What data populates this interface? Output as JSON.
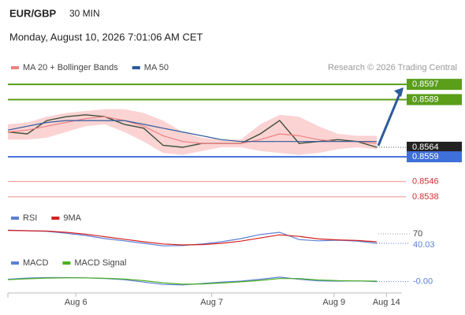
{
  "header": {
    "symbol": "EUR/GBP",
    "interval": "30 MIN",
    "datetime": "Monday, August 10, 2026 7:01:06 AM CET"
  },
  "chart_data": [
    {
      "type": "line",
      "source": "Research © 2026 Trading Central",
      "x": [
        0,
        1,
        2,
        3,
        4,
        5,
        6,
        7,
        8,
        9,
        10,
        11,
        12,
        13,
        14,
        15,
        16,
        17,
        18,
        19
      ],
      "xlim": [
        0,
        20.3
      ],
      "ylim": [
        0.8533,
        0.8602
      ],
      "values": [
        0.8572,
        0.8571,
        0.8578,
        0.858,
        0.8581,
        0.858,
        0.8576,
        0.8574,
        0.8565,
        0.8564,
        0.8566,
        0.8566,
        0.8566,
        0.8571,
        0.8578,
        0.8566,
        0.8567,
        0.8568,
        0.8567,
        0.8564
      ],
      "color": "#3d4f3a",
      "series": [
        {
          "name": "MA 20 + Bollinger Bands",
          "color": "#f08080",
          "band_color": "#fbd3d3",
          "values": [
            0.8572,
            0.8573,
            0.8575,
            0.8577,
            0.8579,
            0.858,
            0.8578,
            0.8575,
            0.857,
            0.8567,
            0.8566,
            0.8566,
            0.8566,
            0.8568,
            0.8571,
            0.857,
            0.8568,
            0.8567,
            0.8567,
            0.8566
          ],
          "upper": [
            0.8576,
            0.8577,
            0.858,
            0.8582,
            0.8583,
            0.8584,
            0.8584,
            0.8582,
            0.8578,
            0.8572,
            0.8569,
            0.8568,
            0.8568,
            0.8576,
            0.8581,
            0.858,
            0.8575,
            0.8571,
            0.857,
            0.857
          ],
          "lower": [
            0.8568,
            0.8568,
            0.8569,
            0.8572,
            0.8575,
            0.8576,
            0.8572,
            0.8567,
            0.8561,
            0.856,
            0.8562,
            0.8564,
            0.8564,
            0.8562,
            0.8561,
            0.856,
            0.8561,
            0.8563,
            0.8564,
            0.8563
          ]
        },
        {
          "name": "MA 50",
          "color": "#2c5a9c",
          "values": [
            0.8573,
            0.8575,
            0.8577,
            0.8578,
            0.8578,
            0.8578,
            0.8578,
            0.8576,
            0.8574,
            0.8572,
            0.857,
            0.8568,
            0.8567,
            0.8567,
            0.8567,
            0.8567,
            0.8567,
            0.8567,
            0.8567,
            0.8567
          ]
        }
      ],
      "levels": [
        {
          "value": 0.8597,
          "color": "#5a9e1a",
          "style": "box"
        },
        {
          "value": 0.8589,
          "color": "#5a9e1a",
          "style": "box"
        },
        {
          "value": 0.8564,
          "color": "#222222",
          "style": "current"
        },
        {
          "value": 0.8559,
          "color": "#3f6fd8",
          "style": "box"
        },
        {
          "value": 0.8546,
          "color": "#f2a5a5",
          "style": "text"
        },
        {
          "value": 0.8538,
          "color": "#f2a5a5",
          "style": "text"
        }
      ]
    },
    {
      "type": "line",
      "x": [
        0,
        1,
        2,
        3,
        4,
        5,
        6,
        7,
        8,
        9,
        10,
        11,
        12,
        13,
        14,
        15,
        16,
        17,
        18,
        19
      ],
      "xlim": [
        0,
        20.3
      ],
      "ylim": [
        0,
        100
      ],
      "yticks": [
        70
      ],
      "series": [
        {
          "name": "RSI",
          "color": "#5b7fd6",
          "values": [
            82,
            80,
            78,
            72,
            65,
            55,
            48,
            40,
            32,
            33,
            38,
            45,
            55,
            68,
            75,
            52,
            48,
            50,
            47,
            40.03
          ]
        },
        {
          "name": "9MA",
          "color": "#d42020",
          "values": [
            81,
            80,
            79,
            75,
            69,
            61,
            53,
            45,
            38,
            35,
            36,
            40,
            47,
            57,
            67,
            62,
            54,
            51,
            49,
            45
          ]
        }
      ]
    },
    {
      "type": "line",
      "x": [
        0,
        1,
        2,
        3,
        4,
        5,
        6,
        7,
        8,
        9,
        10,
        11,
        12,
        13,
        14,
        15,
        16,
        17,
        18,
        19
      ],
      "xlim": [
        0,
        20.3
      ],
      "ylim": [
        -0.0005,
        0.0005
      ],
      "xticks": [
        {
          "value": 3.5,
          "label": "Aug 6"
        },
        {
          "value": 10.5,
          "label": "Aug 7"
        },
        {
          "value": 16.8,
          "label": "Aug 9"
        },
        {
          "value": 19.5,
          "label": "Aug 14"
        }
      ],
      "series": [
        {
          "name": "MACD",
          "color": "#5b7fd6",
          "values": [
            8e-05,
            0.00013,
            0.00015,
            0.00015,
            0.00014,
            0.00011,
            6e-05,
            -4e-05,
            -0.00014,
            -0.00016,
            -0.0001,
            -4e-05,
            0.0,
            8e-05,
            0.00017,
            8e-05,
            1e-05,
            0.0,
            1e-05,
            -2e-05
          ],
          "value_labels": [
            null,
            null,
            null,
            null,
            null,
            null,
            null,
            null,
            null,
            null,
            null,
            null,
            null,
            null,
            null,
            null,
            null,
            null,
            null,
            "-0.00"
          ]
        },
        {
          "name": "MACD Signal",
          "color": "#4caf20",
          "values": [
            6e-05,
            0.0001,
            0.00013,
            0.00014,
            0.00014,
            0.00012,
            9e-05,
            2e-05,
            -7e-05,
            -0.00013,
            -0.00012,
            -8e-05,
            -3e-05,
            3e-05,
            0.00011,
            0.00011,
            5e-05,
            2e-05,
            1e-05,
            0.0
          ]
        }
      ]
    }
  ]
}
